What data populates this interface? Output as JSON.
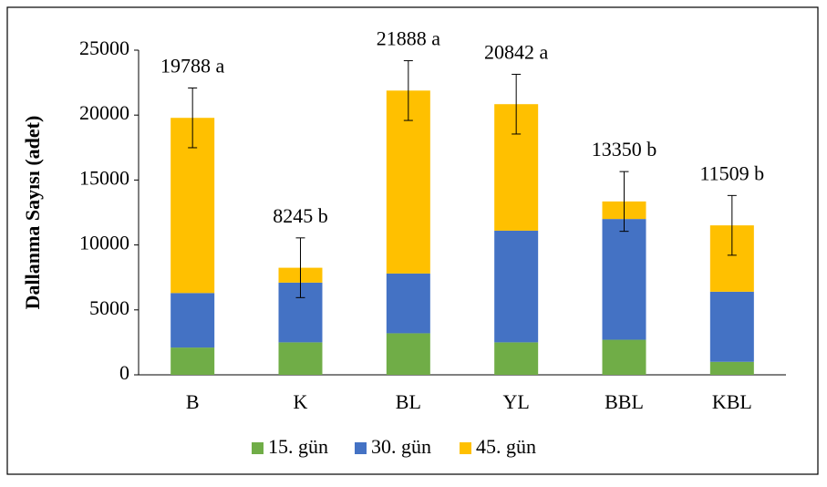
{
  "chart_data": {
    "type": "stacked_bar",
    "y_label": "Dallanma Sayısı (adet)",
    "categories": [
      "B",
      "K",
      "BL",
      "YL",
      "BBL",
      "KBL"
    ],
    "series": [
      {
        "name": "15. gün",
        "color": "#70ad47",
        "values": [
          2100,
          2500,
          3200,
          2500,
          2700,
          1000
        ]
      },
      {
        "name": "30. gün",
        "color": "#4472c4",
        "values": [
          4200,
          4600,
          4600,
          8600,
          9300,
          5400
        ]
      },
      {
        "name": "45. gün",
        "color": "#ffc000",
        "values": [
          13488,
          1145,
          14088,
          9742,
          1350,
          5109
        ]
      }
    ],
    "values": [
      19788,
      8245,
      21888,
      20842,
      13350,
      11509
    ],
    "value_labels": [
      "19788 a",
      "8245 b",
      "21888 a",
      "20842 a",
      "13350 b",
      "11509 b"
    ],
    "errors": [
      2300,
      2300,
      2300,
      2300,
      2300,
      2300
    ],
    "ylim": [
      0,
      25000
    ],
    "yticks": [
      0,
      5000,
      10000,
      15000,
      20000,
      25000
    ],
    "grid": false,
    "legend": "bottom"
  }
}
